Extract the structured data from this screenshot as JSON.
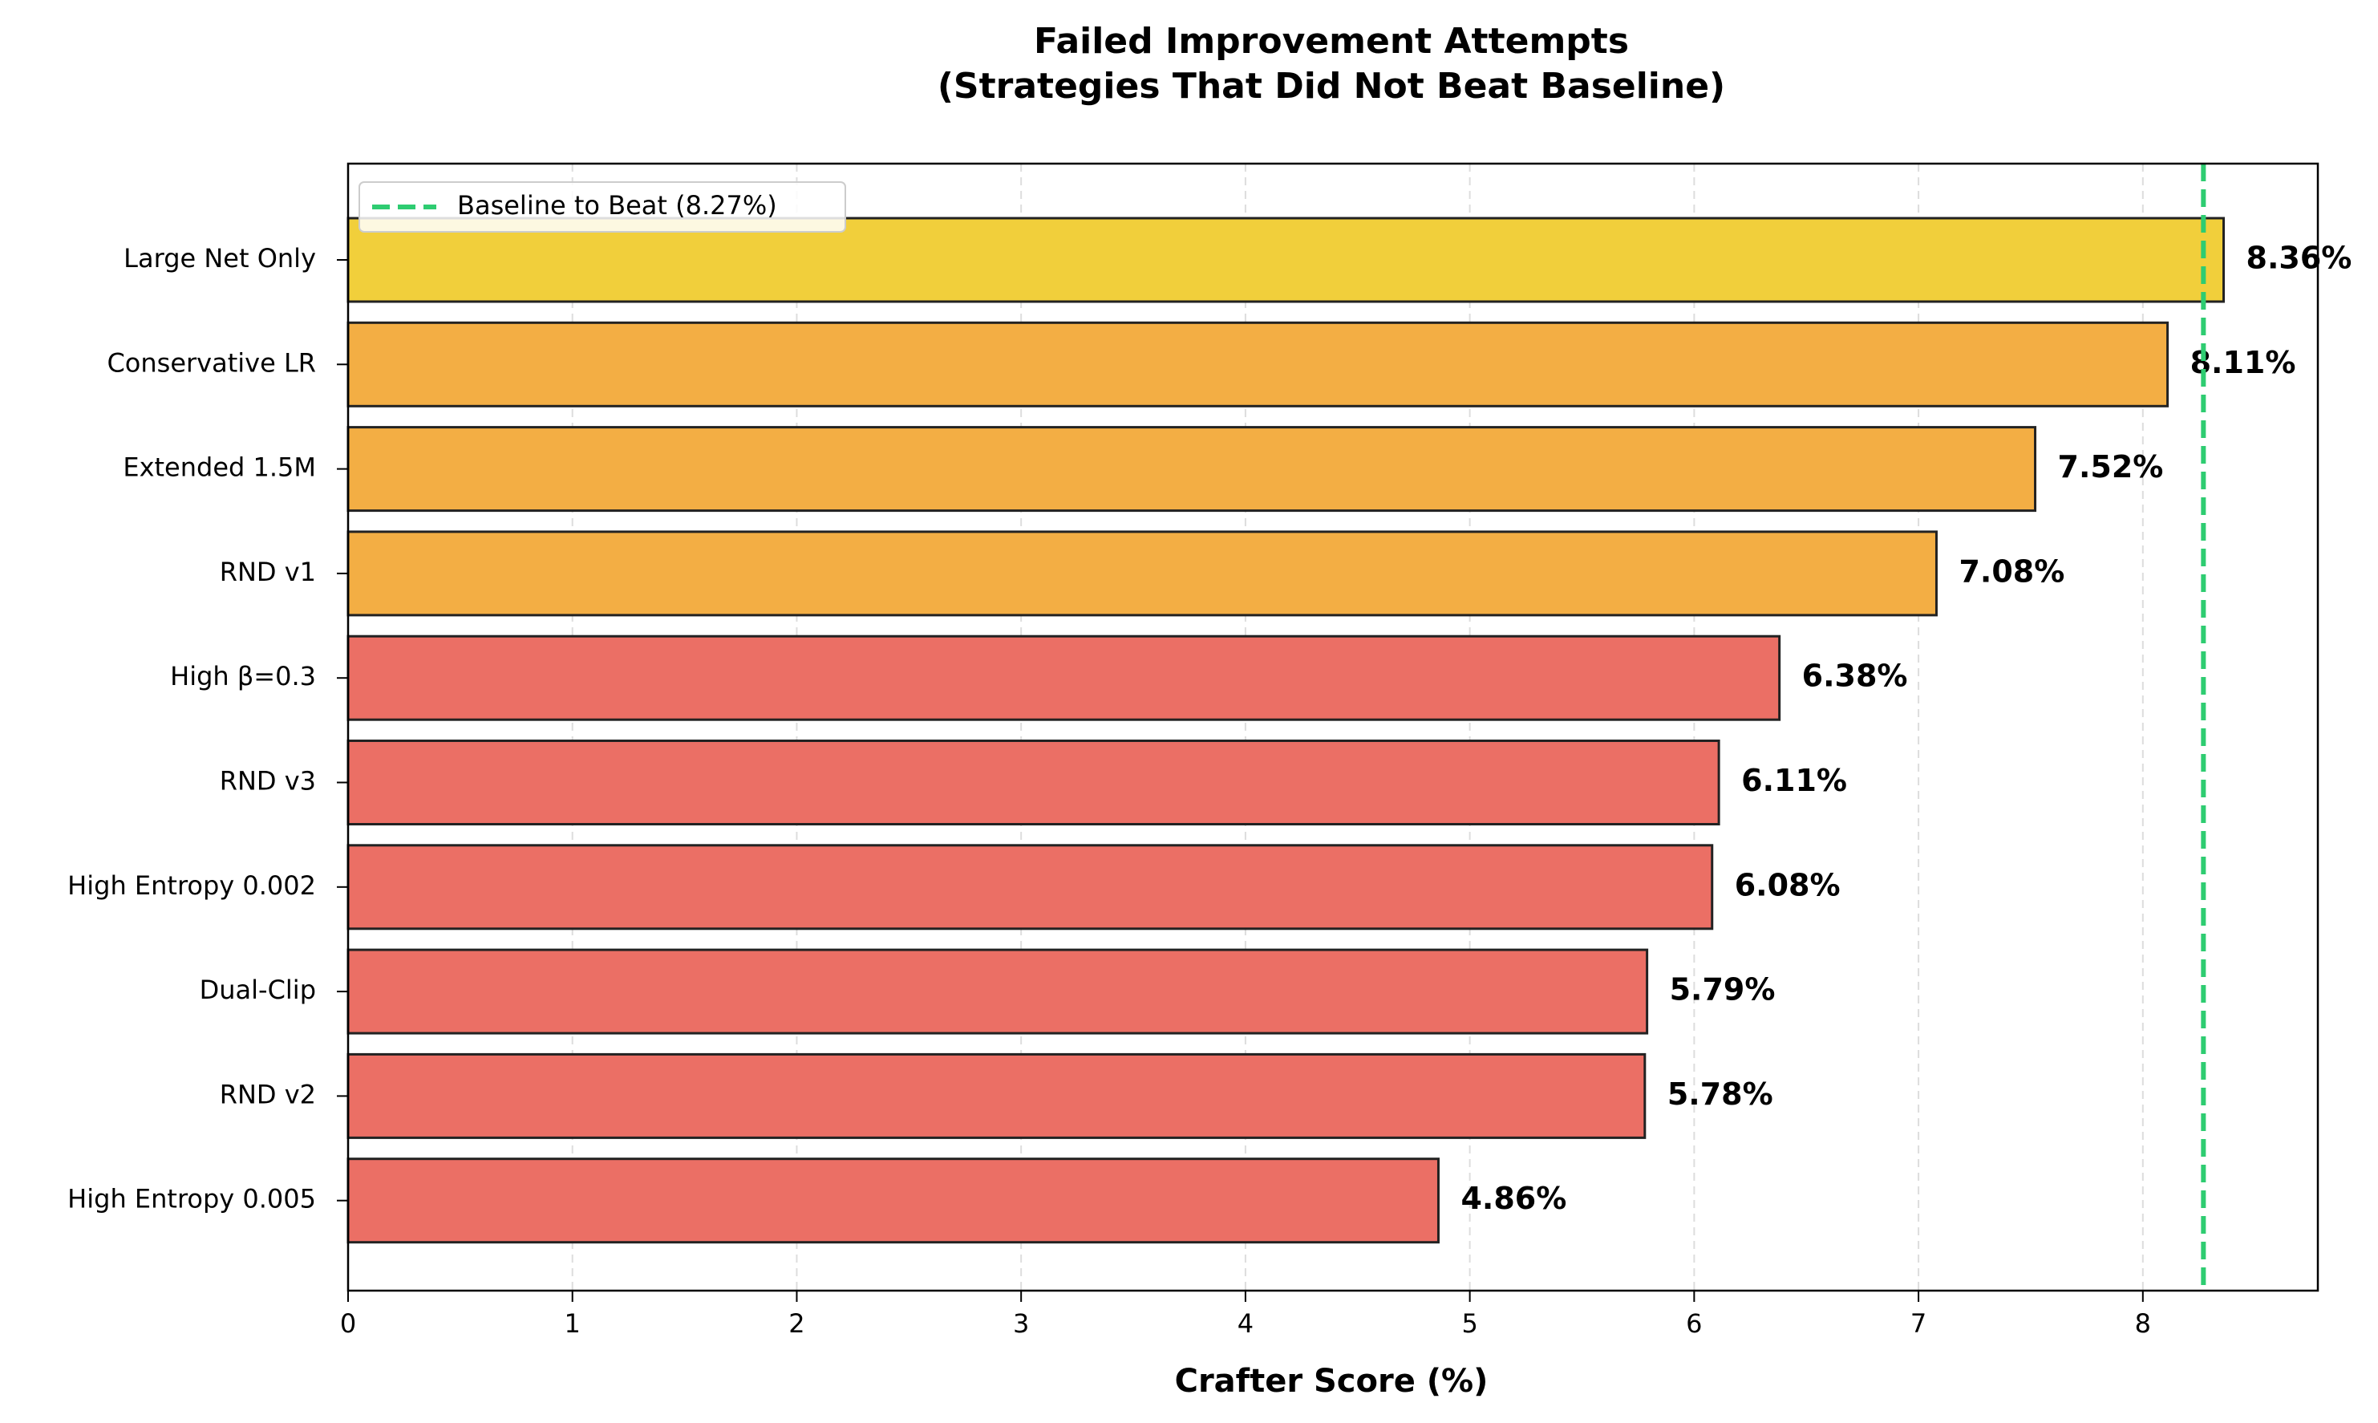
{
  "chart_data": {
    "type": "bar",
    "orientation": "horizontal",
    "title": "Failed Improvement Attempts",
    "subtitle": "(Strategies That Did Not Beat Baseline)",
    "xlabel": "Crafter Score (%)",
    "ylabel": "",
    "xlim": [
      0,
      8.78
    ],
    "xticks": [
      0,
      1,
      2,
      3,
      4,
      5,
      6,
      7,
      8
    ],
    "grid": "x-dashed",
    "categories": [
      "Large Net Only",
      "Conservative LR",
      "Extended 1.5M",
      "RND v1",
      "High β=0.3",
      "RND v3",
      "High Entropy 0.002",
      "Dual-Clip",
      "RND v2",
      "High Entropy 0.005"
    ],
    "values": [
      8.36,
      8.11,
      7.52,
      7.08,
      6.38,
      6.11,
      6.08,
      5.79,
      5.78,
      4.86
    ],
    "value_labels": [
      "8.36%",
      "8.11%",
      "7.52%",
      "7.08%",
      "6.38%",
      "6.11%",
      "6.08%",
      "5.79%",
      "5.78%",
      "4.86%"
    ],
    "bar_colors": [
      "#f1cf3b",
      "#f3ae44",
      "#f3ae44",
      "#f3ae44",
      "#eb6f65",
      "#eb6f65",
      "#eb6f65",
      "#eb6f65",
      "#eb6f65",
      "#eb6f65"
    ],
    "baseline": {
      "value": 8.27,
      "label": "Baseline to Beat (8.27%)",
      "color": "#2ecc71",
      "style": "dashed"
    },
    "legend_position": "top-left"
  }
}
